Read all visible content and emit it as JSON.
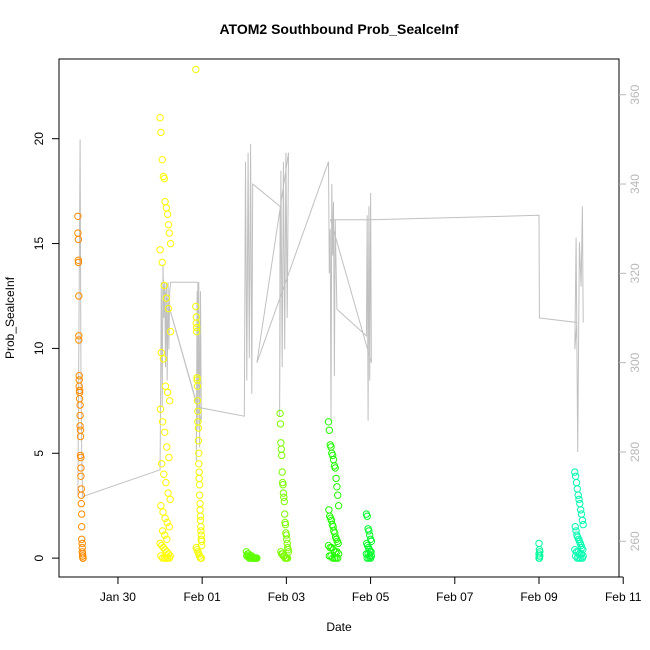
{
  "chart_data": {
    "type": "scatter",
    "title": "ATOM2 Southbound Prob_SealceInf",
    "xlabel": "Date",
    "ylabel": "Prob_SealceInf",
    "x_ticks": [
      "Jan 30",
      "Feb 01",
      "Feb 03",
      "Feb 05",
      "Feb 07",
      "Feb 09",
      "Feb 11"
    ],
    "xlim_days_from_jan30": [
      -1.4,
      11.9
    ],
    "ylim": [
      -0.9,
      23.8
    ],
    "y_ticks": [
      0,
      5,
      10,
      15,
      20
    ],
    "y2_ticks": [
      260,
      280,
      300,
      320,
      340,
      360
    ],
    "y2lim": [
      252,
      368
    ],
    "series": [
      {
        "color": "#ff8c00",
        "x_day": [
          -0.95,
          -0.95,
          -0.94,
          -0.94,
          -0.94,
          -0.93,
          -0.93,
          -0.93,
          -0.92,
          -0.92,
          -0.92,
          -0.91,
          -0.91,
          -0.91,
          -0.9,
          -0.9,
          -0.9,
          -0.89,
          -0.89,
          -0.89,
          -0.88,
          -0.88,
          -0.88,
          -0.87,
          -0.87,
          -0.87,
          -0.86,
          -0.86,
          -0.86,
          -0.85,
          -0.85,
          -0.85,
          -0.84,
          -0.84,
          -0.84,
          -0.83,
          -0.83,
          -0.83
        ],
        "y": [
          16.3,
          15.5,
          15.2,
          14.2,
          14.1,
          12.5,
          10.6,
          10.4,
          8.7,
          8.5,
          8.2,
          8.0,
          7.9,
          7.6,
          7.3,
          6.8,
          6.3,
          6.1,
          5.8,
          4.9,
          4.8,
          4.3,
          3.9,
          3.3,
          3.0,
          2.6,
          2.1,
          1.5,
          0.9,
          0.7,
          0.5,
          0.3,
          0.2,
          0.1,
          0.1,
          0.0,
          0.0,
          0.0
        ]
      },
      {
        "color": "#ffff00",
        "x_day": [
          1.0,
          1.02,
          1.05,
          1.08,
          1.1,
          1.12,
          1.15,
          1.18,
          1.2,
          1.22,
          1.25,
          1.0,
          1.05,
          1.1,
          1.15,
          1.2,
          1.25,
          1.03,
          1.08,
          1.13,
          1.18,
          1.23,
          1.01,
          1.06,
          1.11,
          1.16,
          1.21,
          1.04,
          1.09,
          1.14,
          1.19,
          1.24,
          1.02,
          1.07,
          1.12,
          1.17,
          1.22,
          1.06,
          1.11,
          1.16,
          1.0,
          1.04,
          1.08,
          1.12,
          1.16,
          1.2,
          1.24,
          1.02,
          1.06,
          1.1,
          1.14,
          1.18,
          1.22
        ],
        "y": [
          21.0,
          20.3,
          19.0,
          18.2,
          18.1,
          17.0,
          16.7,
          16.4,
          15.9,
          15.5,
          15.0,
          14.7,
          14.1,
          13.0,
          12.4,
          11.9,
          10.8,
          9.8,
          9.5,
          8.2,
          7.9,
          7.5,
          7.1,
          6.5,
          6.0,
          5.3,
          4.8,
          4.5,
          4.0,
          3.6,
          3.1,
          2.8,
          2.5,
          2.2,
          1.9,
          1.7,
          1.5,
          1.3,
          1.1,
          0.9,
          0.7,
          0.6,
          0.5,
          0.4,
          0.3,
          0.2,
          0.1,
          0.1,
          0.0,
          0.0,
          0.0,
          0.0,
          0.0
        ]
      },
      {
        "color": "#f4ff00",
        "x_day": [
          1.85,
          1.85,
          1.86,
          1.86,
          1.87,
          1.87,
          1.88,
          1.88,
          1.89,
          1.89,
          1.9,
          1.9,
          1.91,
          1.91,
          1.92,
          1.92,
          1.93,
          1.93,
          1.94,
          1.94,
          1.95,
          1.95,
          1.96,
          1.96,
          1.97,
          1.97,
          1.98,
          1.98,
          1.99,
          1.99,
          1.86,
          1.88,
          1.9,
          1.92,
          1.94,
          1.96,
          1.98
        ],
        "y": [
          23.3,
          12.0,
          11.5,
          11.2,
          11.0,
          10.8,
          8.6,
          8.5,
          8.2,
          7.5,
          7.0,
          6.5,
          6.2,
          5.6,
          5.0,
          4.5,
          4.1,
          3.8,
          3.5,
          3.0,
          2.6,
          2.3,
          2.0,
          1.8,
          1.5,
          1.3,
          1.1,
          0.9,
          0.8,
          0.6,
          0.5,
          0.4,
          0.3,
          0.2,
          0.1,
          0.0,
          0.0
        ]
      },
      {
        "color": "#5fff00",
        "x_day": [
          3.05,
          3.08,
          3.1,
          3.12,
          3.15,
          3.18,
          3.2,
          3.22,
          3.25,
          3.28,
          3.3,
          3.06,
          3.09,
          3.12,
          3.15,
          3.18,
          3.21,
          3.24,
          3.27
        ],
        "y": [
          0.3,
          0.2,
          0.2,
          0.1,
          0.1,
          0.1,
          0.0,
          0.0,
          0.0,
          0.0,
          0.0,
          0.1,
          0.1,
          0.0,
          0.0,
          0.0,
          0.0,
          0.0,
          0.0
        ]
      },
      {
        "color": "#7cff00",
        "x_day": [
          3.85,
          3.86,
          3.87,
          3.88,
          3.89,
          3.9,
          3.91,
          3.92,
          3.93,
          3.94,
          3.95,
          3.96,
          3.97,
          3.98,
          3.99,
          4.0,
          4.01,
          4.02,
          4.03,
          4.04,
          4.05,
          3.87,
          3.89,
          3.91,
          3.93,
          3.95,
          3.97,
          3.99,
          4.01,
          4.03
        ],
        "y": [
          6.9,
          6.4,
          5.5,
          5.2,
          4.9,
          4.1,
          3.6,
          3.5,
          3.1,
          2.9,
          2.7,
          2.1,
          1.7,
          1.6,
          1.2,
          1.1,
          0.9,
          0.7,
          0.5,
          0.4,
          0.3,
          0.3,
          0.2,
          0.2,
          0.1,
          0.1,
          0.0,
          0.0,
          0.0,
          0.0
        ]
      },
      {
        "color": "#22ff00",
        "x_day": [
          5.0,
          5.02,
          5.04,
          5.06,
          5.08,
          5.1,
          5.12,
          5.14,
          5.16,
          5.18,
          5.2,
          5.22,
          5.24,
          5.01,
          5.03,
          5.05,
          5.07,
          5.09,
          5.11,
          5.13,
          5.15,
          5.17,
          5.19,
          5.21,
          5.23,
          5.0,
          5.04,
          5.08,
          5.12,
          5.16,
          5.2,
          5.24,
          5.02,
          5.06,
          5.1,
          5.14,
          5.18,
          5.22
        ],
        "y": [
          6.5,
          6.1,
          5.4,
          5.3,
          5.0,
          4.9,
          4.7,
          4.4,
          4.3,
          3.8,
          3.4,
          3.0,
          2.5,
          2.3,
          2.0,
          1.9,
          1.8,
          1.6,
          1.5,
          1.3,
          1.2,
          1.0,
          0.9,
          0.8,
          0.7,
          0.6,
          0.5,
          0.5,
          0.4,
          0.3,
          0.3,
          0.2,
          0.1,
          0.1,
          0.0,
          0.0,
          0.0,
          0.0
        ]
      },
      {
        "color": "#00ff2a",
        "x_day": [
          5.9,
          5.92,
          5.94,
          5.96,
          5.98,
          6.0,
          6.02,
          5.91,
          5.93,
          5.95,
          5.97,
          5.99,
          6.01,
          5.9,
          5.94,
          5.98,
          6.02,
          5.92,
          5.96,
          6.0
        ],
        "y": [
          2.1,
          2.0,
          1.4,
          1.3,
          1.1,
          0.9,
          0.8,
          0.7,
          0.6,
          0.5,
          0.4,
          0.3,
          0.3,
          0.2,
          0.2,
          0.1,
          0.1,
          0.0,
          0.0,
          0.0
        ]
      },
      {
        "color": "#00ff9d",
        "x_day": [
          10.0,
          10.01,
          10.02,
          10.0,
          10.01,
          10.02,
          10.0,
          10.01
        ],
        "y": [
          0.7,
          0.4,
          0.3,
          0.2,
          0.1,
          0.1,
          0.0,
          0.0
        ]
      },
      {
        "color": "#00ffb0",
        "x_day": [
          10.85,
          10.87,
          10.89,
          10.91,
          10.93,
          10.95,
          10.97,
          10.99,
          11.01,
          11.03,
          11.05,
          10.86,
          10.88,
          10.9,
          10.92,
          10.94,
          10.96,
          10.98,
          11.0,
          11.02,
          11.04,
          10.85,
          10.89,
          10.93,
          10.97,
          11.01,
          11.05,
          10.87,
          10.91,
          10.95,
          10.99,
          11.03
        ],
        "y": [
          4.1,
          3.9,
          3.6,
          3.3,
          3.0,
          2.8,
          2.6,
          2.3,
          2.1,
          1.8,
          1.6,
          1.5,
          1.3,
          1.1,
          1.0,
          0.9,
          0.8,
          0.7,
          0.6,
          0.5,
          0.4,
          0.4,
          0.3,
          0.3,
          0.2,
          0.2,
          0.1,
          0.1,
          0.0,
          0.0,
          0.0,
          0.0
        ]
      }
    ],
    "line_series": {
      "color": "#c0c0c0",
      "axis": "right",
      "x_day": [
        -0.95,
        -0.9,
        -0.88,
        -0.86,
        -0.84,
        1.0,
        1.03,
        1.05,
        1.07,
        1.09,
        1.11,
        1.13,
        1.15,
        1.17,
        1.19,
        1.21,
        1.23,
        1.25,
        1.9,
        1.86,
        1.88,
        1.9,
        1.92,
        1.94,
        1.96,
        1.98,
        1.05,
        1.9,
        3.0,
        3.03,
        3.06,
        3.09,
        3.12,
        3.15,
        3.18,
        3.2,
        3.85,
        3.84,
        3.87,
        3.9,
        3.93,
        3.96,
        3.99,
        4.02,
        4.05,
        3.3,
        5.0,
        5.02,
        5.04,
        5.06,
        5.08,
        5.1,
        5.12,
        5.14,
        5.16,
        5.2,
        5.9,
        5.92,
        5.94,
        5.96,
        5.98,
        6.0,
        6.02,
        5.05,
        5.95,
        10.0,
        10.01,
        10.02,
        10.9,
        10.85,
        10.88,
        10.92,
        10.96,
        11.0,
        11.03,
        11.05
      ],
      "y": [
        270,
        350,
        300,
        280,
        270,
        276,
        318,
        290,
        322,
        310,
        318,
        299,
        318,
        296,
        318,
        303,
        316,
        318,
        318,
        278,
        316,
        285,
        318,
        281,
        316,
        287,
        318,
        290,
        288,
        345,
        296,
        347,
        301,
        349,
        293,
        340,
        335,
        288,
        343,
        299,
        345,
        303,
        347,
        310,
        347,
        300,
        345,
        320,
        330,
        287,
        340,
        324,
        336,
        297,
        332,
        312,
        306,
        333,
        287,
        335,
        296,
        338,
        300,
        332,
        332,
        333,
        310,
        310,
        309,
        303,
        328,
        280,
        327,
        317,
        335,
        309
      ]
    }
  }
}
